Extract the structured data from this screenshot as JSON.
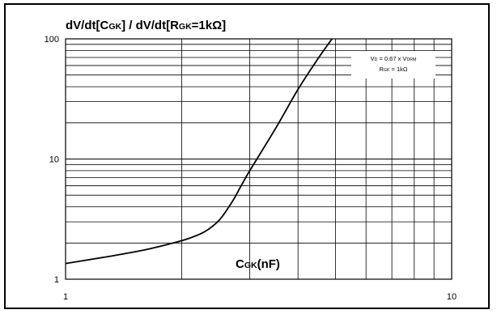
{
  "chart_data": {
    "type": "line",
    "title": {
      "parts": [
        {
          "t": "dV/dt[C"
        },
        {
          "t": "GK",
          "sub": true
        },
        {
          "t": "] / dV/dt[R"
        },
        {
          "t": "GK",
          "sub": true
        },
        {
          "t": "=1kΩ]"
        }
      ]
    },
    "xlabel": {
      "parts": [
        {
          "t": "C"
        },
        {
          "t": "GK",
          "sub": true
        },
        {
          "t": "(nF)"
        }
      ]
    },
    "ylabel": "",
    "x_scale": "log",
    "y_scale": "log",
    "xlim": [
      1,
      10
    ],
    "ylim": [
      1,
      100
    ],
    "x_ticks": [
      "1",
      "10"
    ],
    "y_ticks": [
      "1",
      "10",
      "100"
    ],
    "grid": true,
    "legend": {
      "placement": "top-right",
      "lines": [
        {
          "parts": [
            {
              "t": "V"
            },
            {
              "t": "D",
              "sub": true
            },
            {
              "t": " = 0.67 x V"
            },
            {
              "t": "DRM",
              "sub": true
            }
          ]
        },
        {
          "parts": [
            {
              "t": "R"
            },
            {
              "t": "GK",
              "sub": true
            },
            {
              "t": " = 1kΩ"
            }
          ]
        }
      ]
    },
    "series": [
      {
        "x": [
          1.0,
          1.3,
          1.6,
          1.9,
          2.1,
          2.3,
          2.5,
          2.7,
          2.85,
          3.0,
          3.5,
          4.0,
          4.5,
          4.9
        ],
        "y": [
          1.35,
          1.55,
          1.75,
          2.0,
          2.2,
          2.5,
          3.1,
          4.4,
          6.0,
          8.0,
          18.0,
          38.0,
          68.0,
          100.0
        ]
      }
    ]
  }
}
